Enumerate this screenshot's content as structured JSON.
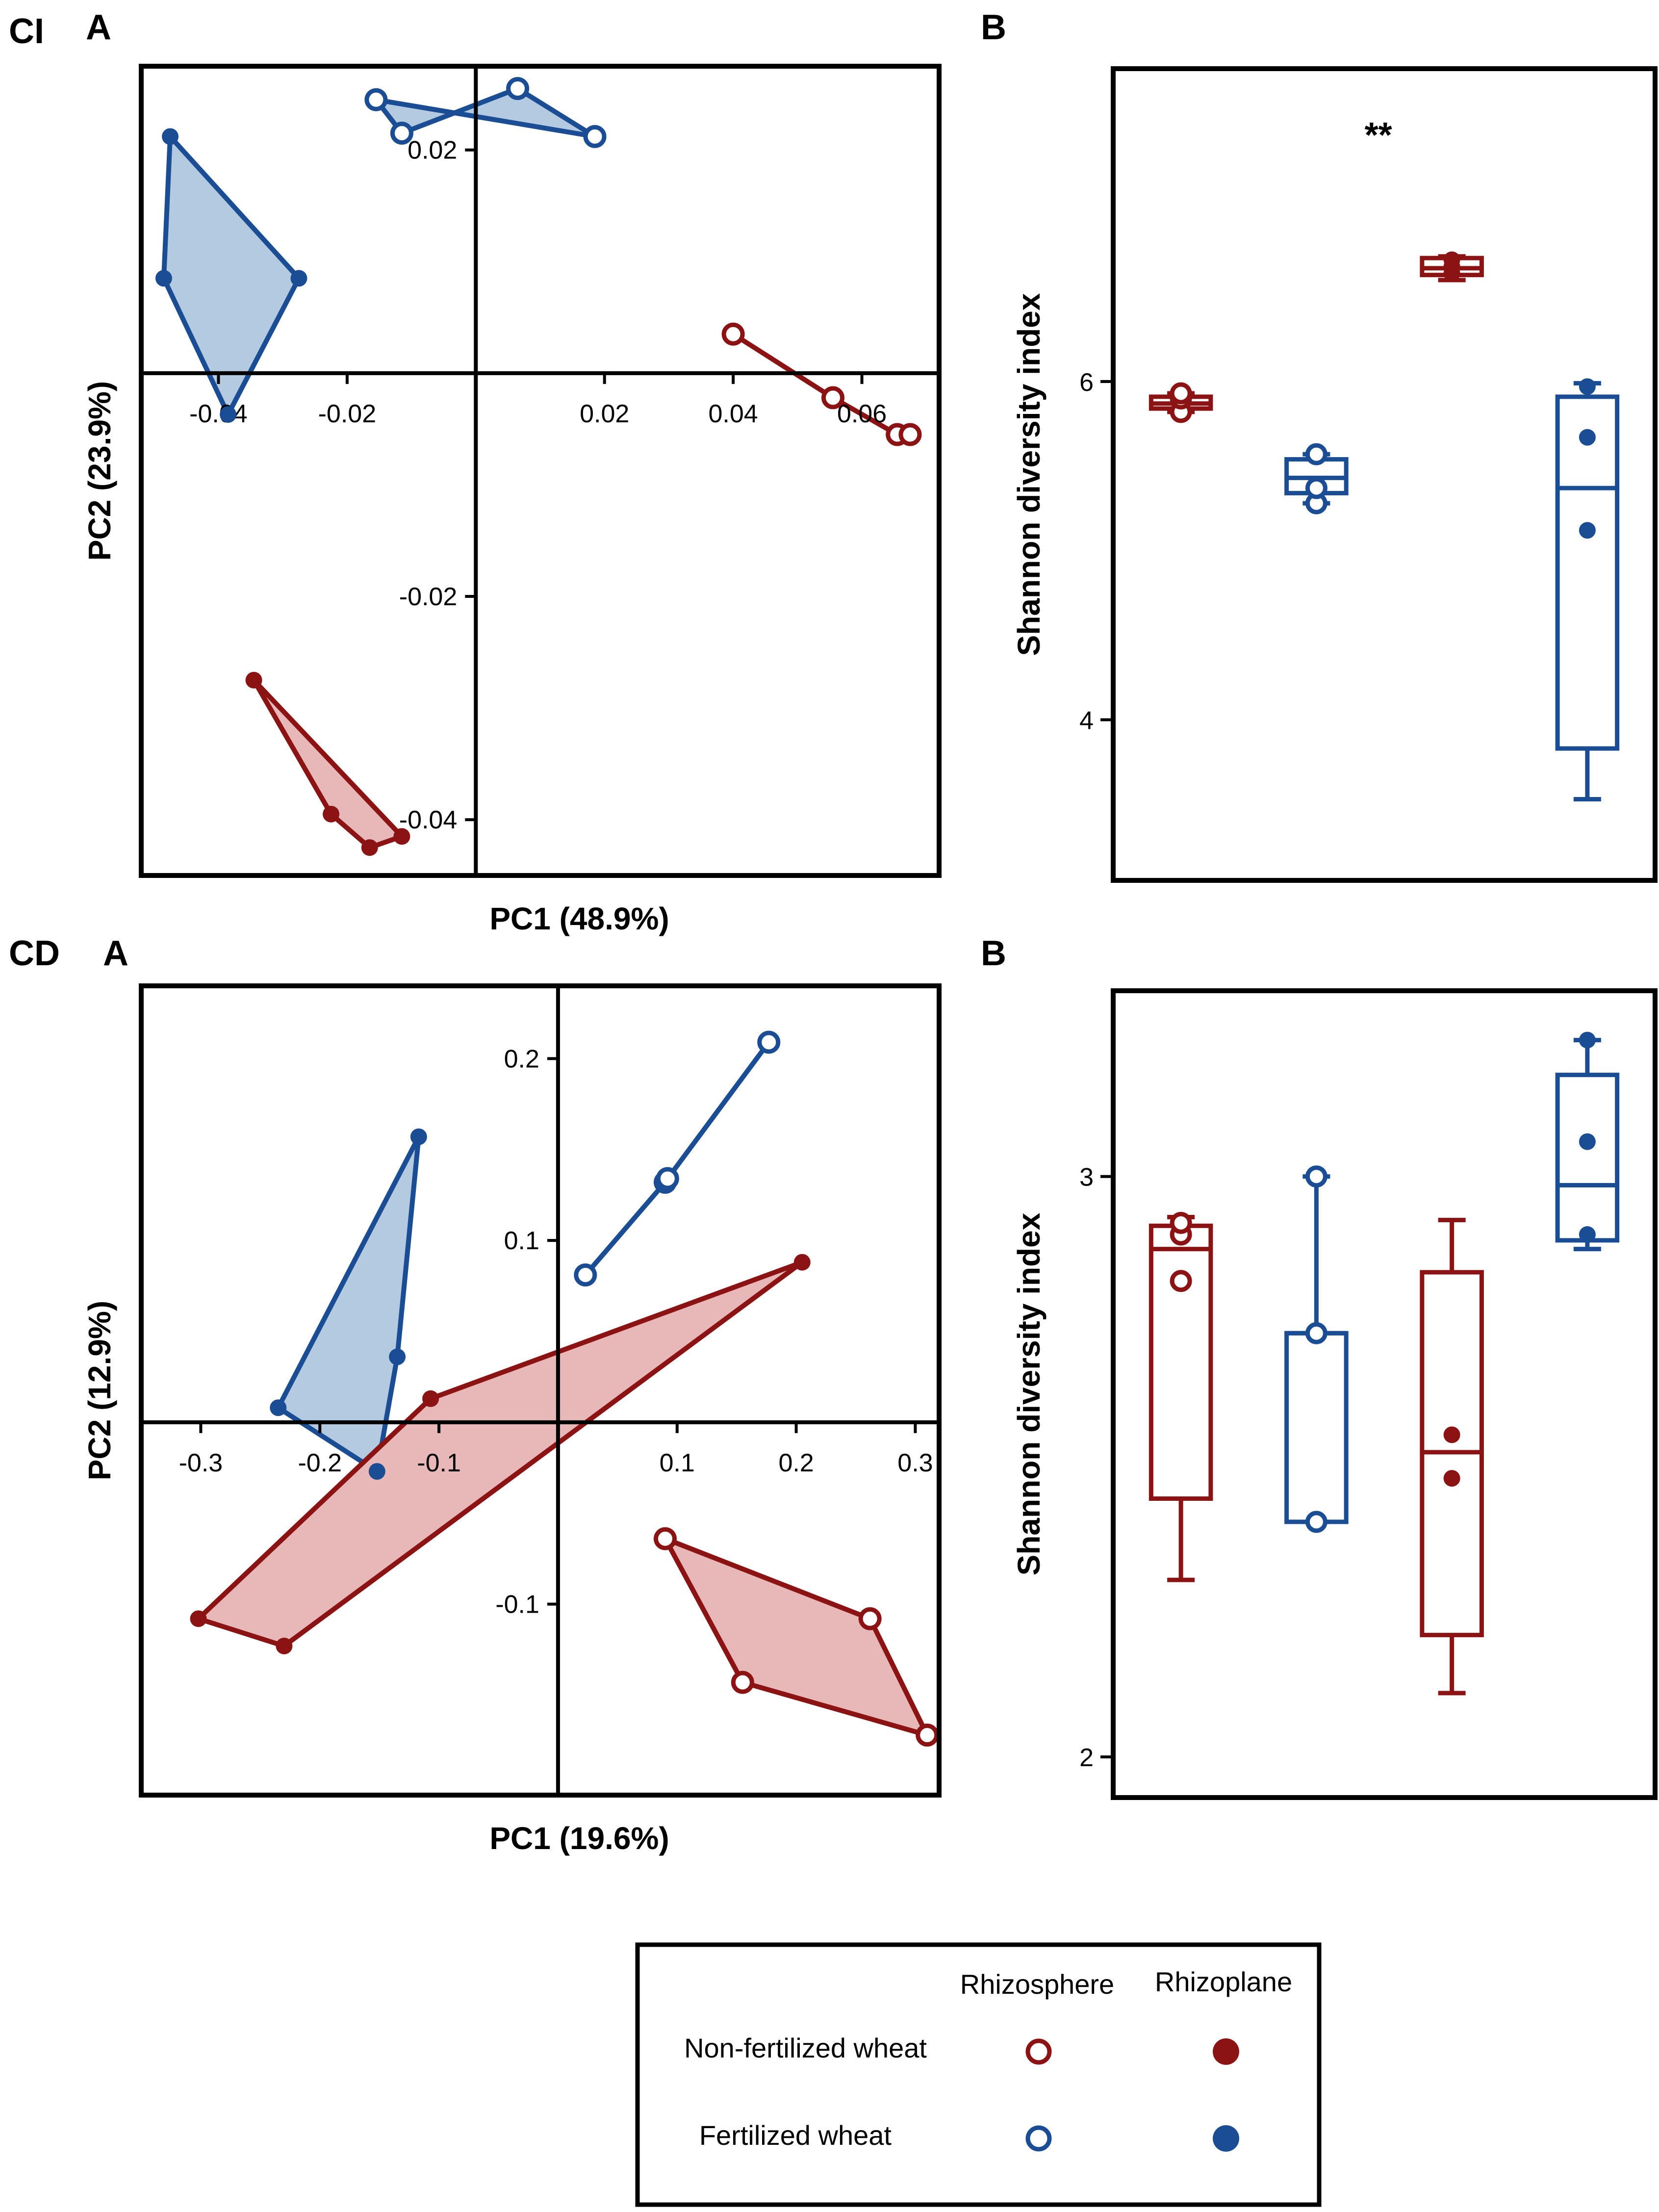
{
  "colors": {
    "fertilized": "#1a4d94",
    "non_fertilized": "#8b1313",
    "fert_fill": "#b3cae0",
    "nonfert_fill": "#e8b8b8"
  },
  "sections": [
    {
      "id": "CI",
      "label": "CI"
    },
    {
      "id": "CD",
      "label": "CD"
    }
  ],
  "legend": {
    "col_rhizosphere": "Rhizosphere",
    "col_rhizoplane": "Rhizoplane",
    "row_nonfert": "Non-fertilized wheat",
    "row_fert": "Fertilized wheat"
  },
  "chart_data": [
    {
      "id": "ci_pcoa",
      "type": "scatter",
      "panel": "A",
      "xlabel": "PC1 (48.9%)",
      "ylabel": "PC2 (23.9%)",
      "xlim": [
        -0.052,
        0.072
      ],
      "ylim": [
        -0.045,
        0.0275
      ],
      "xticks": [
        -0.04,
        -0.02,
        0.02,
        0.04,
        0.06
      ],
      "xtick_labels": [
        "-0.04",
        "-0.02",
        "0.02",
        "0.04",
        "0.06"
      ],
      "yticks": [
        0.02,
        -0.02,
        -0.04
      ],
      "ytick_labels": [
        "0.02",
        "-0.02",
        "-0.04"
      ],
      "groups": [
        {
          "name": "Fertilized rhizosphere",
          "color": "fertilized",
          "open": true,
          "hull": true,
          "path": "hull",
          "points": [
            [
              -0.0155,
              0.0245
            ],
            [
              -0.0115,
              0.0215
            ],
            [
              0.0065,
              0.0255
            ],
            [
              0.0185,
              0.0212
            ]
          ]
        },
        {
          "name": "Fertilized rhizoplane",
          "color": "fertilized",
          "open": false,
          "hull": true,
          "path": "hull",
          "points": [
            [
              -0.0475,
              0.0212
            ],
            [
              -0.0485,
              0.0085
            ],
            [
              -0.0385,
              -0.0037
            ],
            [
              -0.0275,
              0.0085
            ]
          ]
        },
        {
          "name": "Non-fertilized rhizosphere",
          "color": "non_fertilized",
          "open": true,
          "hull": false,
          "path": "line",
          "points": [
            [
              0.04,
              0.0035
            ],
            [
              0.0555,
              -0.0022
            ],
            [
              0.0655,
              -0.0055
            ],
            [
              0.0675,
              -0.0055
            ]
          ]
        },
        {
          "name": "Non-fertilized rhizoplane",
          "color": "non_fertilized",
          "open": false,
          "hull": true,
          "path": "hull",
          "points": [
            [
              -0.0345,
              -0.0275
            ],
            [
              -0.0225,
              -0.0395
            ],
            [
              -0.0165,
              -0.0425
            ],
            [
              -0.0115,
              -0.0415
            ]
          ]
        }
      ]
    },
    {
      "id": "ci_shannon",
      "type": "box",
      "panel": "B",
      "ylabel": "Shannon diversity index",
      "ylim": [
        3.05,
        7.85
      ],
      "yticks": [
        4,
        6
      ],
      "ytick_labels": [
        "4",
        "6"
      ],
      "annotation": "**",
      "annotation_group": 2,
      "boxes": [
        {
          "name": "Non-fertilized rhizosphere",
          "color": "non_fertilized",
          "open": true,
          "min": 5.82,
          "q1": 5.84,
          "median": 5.87,
          "q3": 5.91,
          "max": 5.93,
          "points": [
            5.82,
            5.9,
            5.93
          ]
        },
        {
          "name": "Fertilized rhizosphere",
          "color": "fertilized",
          "open": true,
          "min": 5.28,
          "q1": 5.34,
          "median": 5.43,
          "q3": 5.54,
          "max": 5.57,
          "points": [
            5.28,
            5.37,
            5.57
          ]
        },
        {
          "name": "Non-fertilized rhizoplane",
          "color": "non_fertilized",
          "open": false,
          "min": 6.6,
          "q1": 6.63,
          "median": 6.67,
          "q3": 6.73,
          "max": 6.74,
          "points": [
            6.64,
            6.68,
            6.72
          ]
        },
        {
          "name": "Fertilized rhizoplane",
          "color": "fertilized",
          "open": false,
          "min": 3.53,
          "q1": 3.83,
          "median": 5.37,
          "q3": 5.91,
          "max": 5.99,
          "points": [
            5.12,
            5.67,
            5.97
          ]
        }
      ]
    },
    {
      "id": "cd_pcoa",
      "type": "scatter",
      "panel": "A",
      "xlabel": "PC1 (19.6%)",
      "ylabel": "PC2 (12.9%)",
      "xlim": [
        -0.35,
        0.32
      ],
      "ylim": [
        -0.205,
        0.24
      ],
      "xticks": [
        -0.3,
        -0.2,
        -0.1,
        0.1,
        0.2,
        0.3
      ],
      "xtick_labels": [
        "-0.3",
        "-0.2",
        "-0.1",
        "0.1",
        "0.2",
        "0.3"
      ],
      "yticks": [
        0.2,
        0.1,
        -0.1
      ],
      "ytick_labels": [
        "0.2",
        "0.1",
        "-0.1"
      ],
      "groups": [
        {
          "name": "Fertilized rhizoplane",
          "color": "fertilized",
          "open": false,
          "hull": true,
          "path": "hull",
          "points": [
            [
              -0.235,
              0.008
            ],
            [
              -0.152,
              -0.027
            ],
            [
              -0.135,
              0.036
            ],
            [
              -0.117,
              0.157
            ]
          ]
        },
        {
          "name": "Fertilized rhizosphere",
          "color": "fertilized",
          "open": true,
          "hull": false,
          "path": "line",
          "points": [
            [
              0.023,
              0.081
            ],
            [
              0.09,
              0.132
            ],
            [
              0.092,
              0.134
            ],
            [
              0.177,
              0.209
            ]
          ]
        },
        {
          "name": "Non-fertilized rhizoplane",
          "color": "non_fertilized",
          "open": false,
          "hull": true,
          "path": "hull",
          "points": [
            [
              -0.302,
              -0.108
            ],
            [
              -0.23,
              -0.123
            ],
            [
              0.205,
              0.088
            ],
            [
              -0.107,
              0.013
            ]
          ]
        },
        {
          "name": "Non-fertilized rhizosphere",
          "color": "non_fertilized",
          "open": true,
          "hull": true,
          "path": "hull",
          "points": [
            [
              0.09,
              -0.064
            ],
            [
              0.262,
              -0.108
            ],
            [
              0.31,
              -0.172
            ],
            [
              0.155,
              -0.143
            ]
          ]
        }
      ]
    },
    {
      "id": "cd_shannon",
      "type": "box",
      "panel": "B",
      "ylabel": "Shannon diversity index",
      "ylim": [
        1.93,
        3.32
      ],
      "yticks": [
        2,
        3
      ],
      "ytick_labels": [
        "2",
        "3"
      ],
      "boxes": [
        {
          "name": "Non-fertilized rhizosphere",
          "color": "non_fertilized",
          "open": true,
          "min": 2.305,
          "q1": 2.445,
          "median": 2.875,
          "q3": 2.915,
          "max": 2.93,
          "points": [
            2.82,
            2.9,
            2.92
          ]
        },
        {
          "name": "Fertilized rhizosphere",
          "color": "fertilized",
          "open": true,
          "min": 2.405,
          "q1": 2.405,
          "median": 2.73,
          "q3": 2.73,
          "max": 3.0,
          "points": [
            2.405,
            2.73,
            3.0
          ]
        },
        {
          "name": "Non-fertilized rhizoplane",
          "color": "non_fertilized",
          "open": false,
          "min": 2.11,
          "q1": 2.21,
          "median": 2.525,
          "q3": 2.835,
          "max": 2.925,
          "points": [
            2.48,
            2.555
          ]
        },
        {
          "name": "Fertilized rhizoplane",
          "color": "fertilized",
          "open": false,
          "min": 2.875,
          "q1": 2.89,
          "median": 2.985,
          "q3": 3.175,
          "max": 3.235,
          "points": [
            2.9,
            3.06,
            3.235
          ]
        }
      ]
    }
  ]
}
